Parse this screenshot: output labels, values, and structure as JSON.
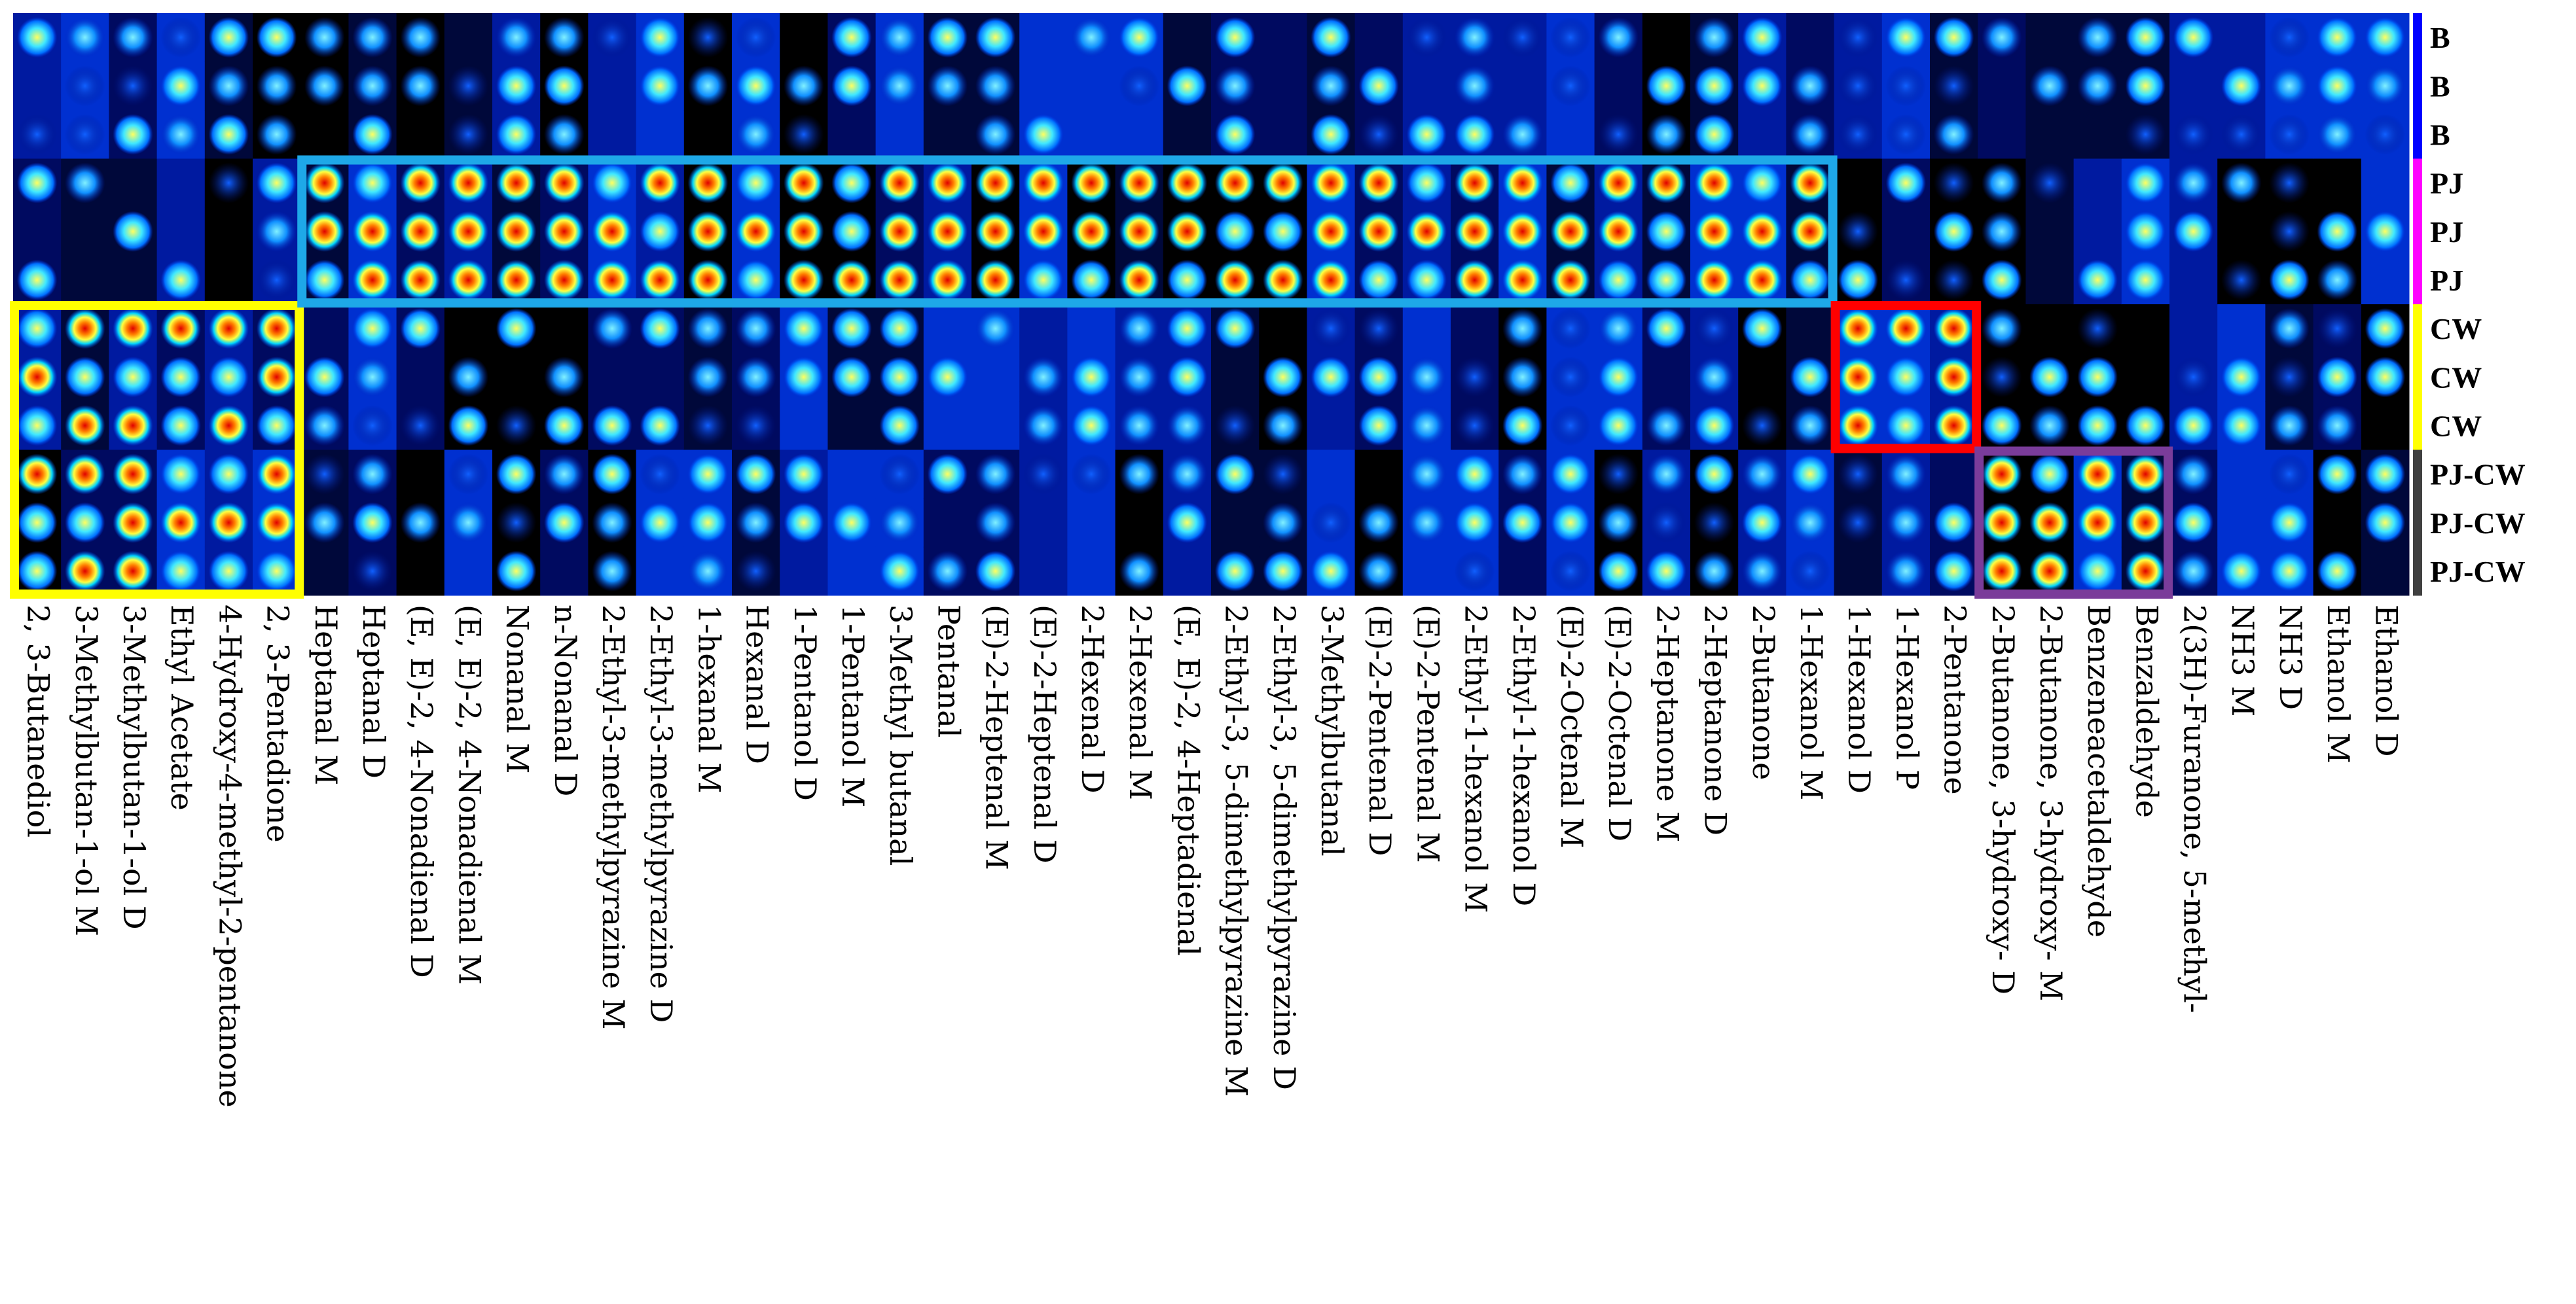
{
  "chart_data": {
    "type": "heatmap",
    "rows": [
      "B",
      "B",
      "B",
      "PJ",
      "PJ",
      "PJ",
      "CW",
      "CW",
      "CW",
      "PJ-CW",
      "PJ-CW",
      "PJ-CW"
    ],
    "groups": [
      {
        "name": "B",
        "color": "#0000ff"
      },
      {
        "name": "PJ",
        "color": "#ff00ff"
      },
      {
        "name": "CW",
        "color": "#ffff00"
      },
      {
        "name": "PJ-CW",
        "color": "#404040"
      }
    ],
    "columns": [
      "2, 3-Butanediol",
      "3-Methylbutan-1-ol M",
      "3-Methylbutan-1-ol D",
      "Ethyl Acetate",
      "4-Hydroxy-4-methyl-2-pentanone",
      "2, 3-Pentadione",
      "Heptanal M",
      "Heptanal D",
      "(E, E)-2, 4-Nonadienal D",
      "(E, E)-2, 4-Nonadienal M",
      "Nonanal M",
      "n-Nonanal D",
      "2-Ethyl-3-methylpyrazine M",
      "2-Ethyl-3-methylpyrazine D",
      "1-hexanal M",
      "Hexanal D",
      "1-Pentanol D",
      "1-Pentanol M",
      "3-Methyl butanal",
      "Pentanal",
      "(E)-2-Heptenal M",
      "(E)-2-Heptenal D",
      "2-Hexenal D",
      "2-Hexenal M",
      "(E, E)-2, 4-Heptadienal",
      "2-Ethyl-3, 5-dimethylpyrazine M",
      "2-Ethyl-3, 5-dimethylpyrazine D",
      "3-Methylbutanal",
      "(E)-2-Pentenal D",
      "(E)-2-Pentenal M",
      "2-Ethyl-1-hexanol M",
      "2-Ethyl-1-hexanol D",
      "(E)-2-Octenal M",
      "(E)-2-Octenal D",
      "2-Heptanone M",
      "2-Heptanone D",
      "2-Butanone",
      "1-Hexanol M",
      "1-Hexanol D",
      "1-Hexanol P",
      "2-Pentanone",
      "2-Butanone, 3-hydroxy- D",
      "2-Butanone, 3-hydroxy- M",
      "Benzeneacetaldehyde",
      "Benzaldehyde",
      "2(3H)-Furanone, 5-methyl-",
      "NH3 M",
      "NH3 D",
      "Ethanol M",
      "Ethanol D"
    ],
    "highlights": [
      {
        "color": "#ffff00",
        "rows": [
          6,
          11
        ],
        "columns": [
          0,
          5
        ],
        "label": ""
      },
      {
        "color": "#1ea8e8",
        "rows": [
          3,
          5
        ],
        "columns": [
          6,
          37
        ],
        "label": ""
      },
      {
        "color": "#ff0000",
        "rows": [
          6,
          8
        ],
        "columns": [
          38,
          40
        ],
        "label": ""
      },
      {
        "color": "#7a3c9a",
        "rows": [
          9,
          11
        ],
        "columns": [
          41,
          44
        ],
        "label": ""
      }
    ],
    "colorscale": [
      "#000033",
      "#0010a0",
      "#0060ff",
      "#00ccff",
      "#ffff00",
      "#ff6000",
      "#e00000"
    ],
    "title": "",
    "xlabel": "",
    "ylabel": ""
  }
}
